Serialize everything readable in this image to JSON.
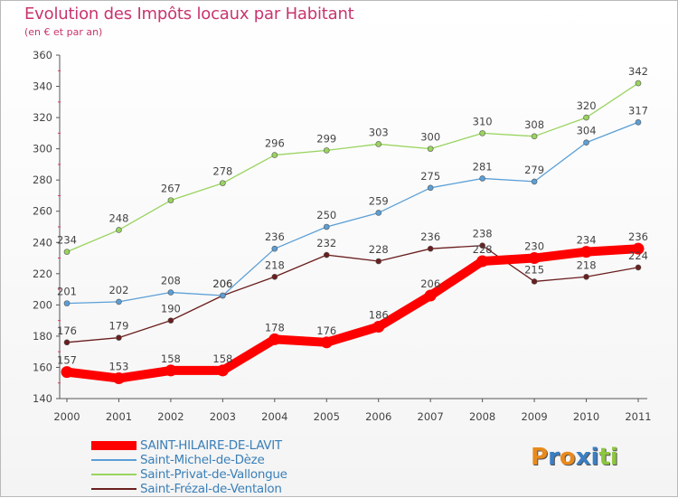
{
  "title": "Evolution des Impôts locaux par Habitant",
  "subtitle": "(en € et par an)",
  "logo": {
    "letters": [
      "P",
      "r",
      "o",
      "x",
      "i",
      "t",
      "i"
    ],
    "colors": [
      "#e88a1d",
      "#3a7fc4",
      "#e88a1d",
      "#3a7fc4",
      "#3a7fc4",
      "#8dc63f",
      "#8dc63f"
    ]
  },
  "chart_data": {
    "type": "line",
    "x": [
      "2000",
      "2001",
      "2002",
      "2003",
      "2004",
      "2005",
      "2006",
      "2007",
      "2008",
      "2009",
      "2010",
      "2011"
    ],
    "ylim": [
      140,
      360
    ],
    "yticks": [
      140,
      160,
      180,
      200,
      220,
      240,
      260,
      280,
      300,
      320,
      340,
      360
    ],
    "grid": false,
    "legend_position": "bottom-left",
    "series": [
      {
        "name": "SAINT-HILAIRE-DE-LAVIT",
        "color": "#ff0000",
        "values": [
          157,
          153,
          158,
          158,
          178,
          176,
          186,
          206,
          228,
          230,
          234,
          236
        ]
      },
      {
        "name": "Saint-Michel-de-Dèze",
        "color": "#5b9fd6",
        "values": [
          201,
          202,
          208,
          206,
          236,
          250,
          259,
          275,
          281,
          279,
          304,
          317
        ]
      },
      {
        "name": "Saint-Privat-de-Vallongue",
        "color": "#99d45e",
        "values": [
          234,
          248,
          267,
          278,
          296,
          299,
          303,
          300,
          310,
          308,
          320,
          342
        ]
      },
      {
        "name": "Saint-Frézal-de-Ventalon",
        "color": "#6b1e1e",
        "values": [
          176,
          179,
          190,
          206,
          218,
          232,
          228,
          236,
          238,
          215,
          218,
          224
        ]
      }
    ]
  }
}
